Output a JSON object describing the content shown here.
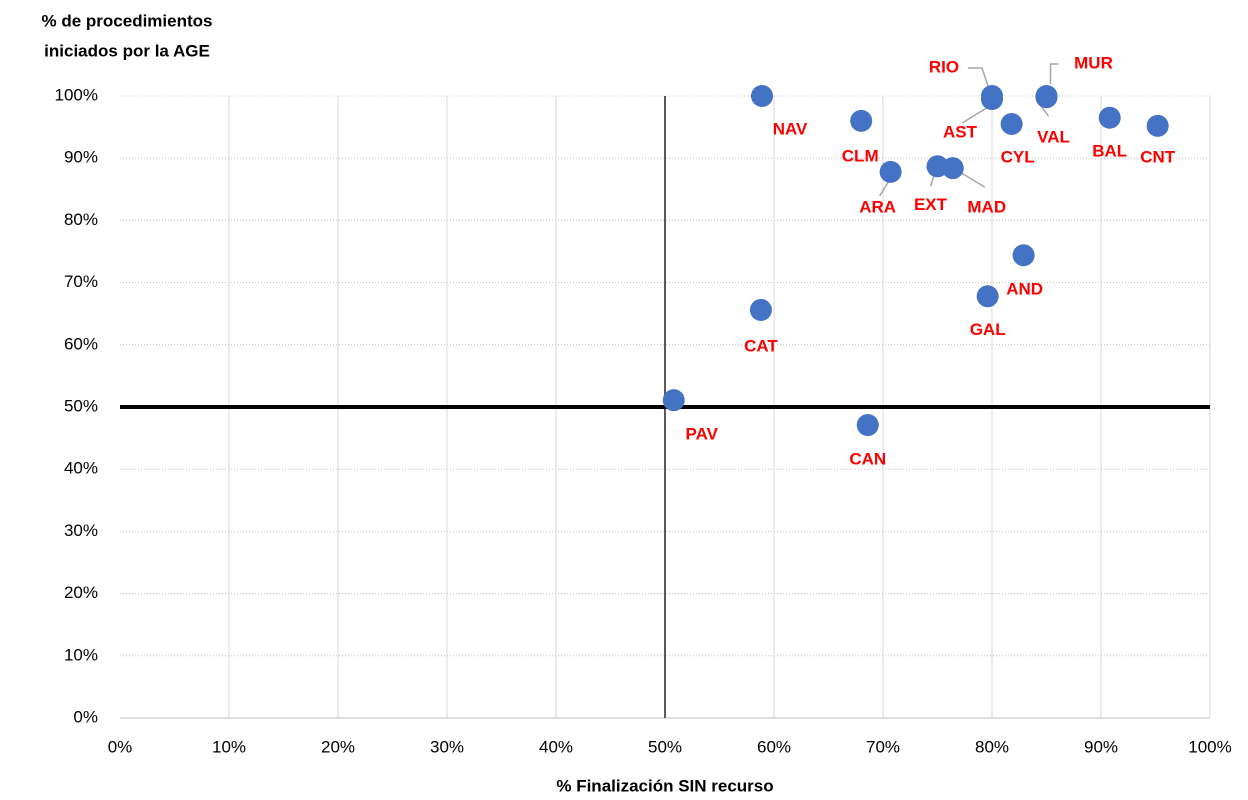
{
  "chart_data": {
    "type": "scatter",
    "ylabel": [
      "% de procedimientos",
      "iniciados por la AGE"
    ],
    "xlabel": "% Finalización SIN recurso",
    "labels": [
      "NAV",
      "CLM",
      "ARA",
      "EXT",
      "MAD",
      "RIO",
      "AST",
      "MUR",
      "VAL",
      "CYL",
      "BAL",
      "CNT",
      "AND",
      "GAL",
      "CAT",
      "PAV",
      "CAN"
    ],
    "x": [
      58.9,
      68.0,
      70.7,
      75.0,
      76.4,
      80.0,
      80.0,
      85.0,
      85.0,
      81.8,
      90.8,
      95.2,
      82.9,
      79.6,
      58.8,
      50.8,
      68.6
    ],
    "y": [
      100,
      96.0,
      87.8,
      88.7,
      88.4,
      100,
      99.5,
      100,
      99.8,
      95.5,
      96.5,
      95.2,
      74.4,
      67.8,
      65.6,
      51.1,
      47.1
    ],
    "color": "#4472c4",
    "label_color": "#ff0000",
    "xlim": [
      0,
      100
    ],
    "ylim": [
      0,
      100
    ],
    "xticks": [
      {
        "value": 0,
        "label": "0%"
      },
      {
        "value": 10,
        "label": "10%"
      },
      {
        "value": 20,
        "label": "20%"
      },
      {
        "value": 30,
        "label": "30%"
      },
      {
        "value": 40,
        "label": "40%"
      },
      {
        "value": 50,
        "label": "50%"
      },
      {
        "value": 60,
        "label": "60%"
      },
      {
        "value": 70,
        "label": "70%"
      },
      {
        "value": 80,
        "label": "80%"
      },
      {
        "value": 90,
        "label": "90%"
      },
      {
        "value": 100,
        "label": "100%"
      }
    ],
    "yticks": [
      {
        "value": 0,
        "label": "0%"
      },
      {
        "value": 10,
        "label": "10%"
      },
      {
        "value": 20,
        "label": "20%"
      },
      {
        "value": 30,
        "label": "30%"
      },
      {
        "value": 40,
        "label": "40%"
      },
      {
        "value": 50,
        "label": "50%"
      },
      {
        "value": 60,
        "label": "60%"
      },
      {
        "value": 70,
        "label": "70%"
      },
      {
        "value": 80,
        "label": "80%"
      },
      {
        "value": 90,
        "label": "90%"
      },
      {
        "value": 100,
        "label": "100%"
      }
    ],
    "reference_x": 50,
    "reference_y": 50,
    "grid": true
  }
}
